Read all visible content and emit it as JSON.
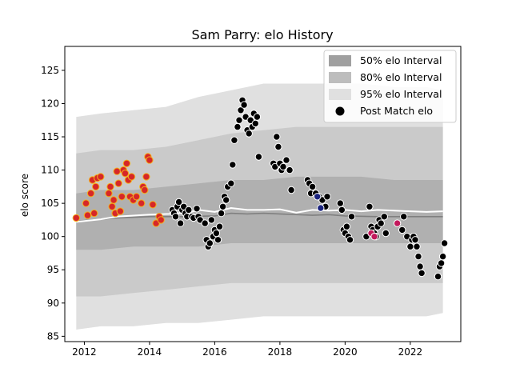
{
  "chart_data": {
    "type": "scatter",
    "title": "Sam Parry: elo History",
    "xlabel": "",
    "ylabel": "elo score",
    "xlim": [
      2011.4,
      2023.55
    ],
    "ylim": [
      84.2,
      128.6
    ],
    "xticks": [
      2012,
      2014,
      2016,
      2018,
      2020,
      2022
    ],
    "xtick_labels": [
      "2012",
      "2014",
      "2016",
      "2018",
      "2020",
      "2022"
    ],
    "yticks": [
      85,
      90,
      95,
      100,
      105,
      110,
      115,
      120,
      125
    ],
    "ytick_labels": [
      "85",
      "90",
      "95",
      "100",
      "105",
      "110",
      "115",
      "120",
      "125"
    ],
    "grid": false,
    "legend_position": "top-right",
    "legend": [
      {
        "label": "50% elo Interval",
        "kind": "patch",
        "color": "#a0a0a0"
      },
      {
        "label": "80% elo Interval",
        "kind": "patch",
        "color": "#bdbdbd"
      },
      {
        "label": "95% elo Interval",
        "kind": "patch",
        "color": "#e0e0e0"
      },
      {
        "label": "Post Match elo",
        "kind": "marker",
        "color": "#000000"
      }
    ],
    "bands": {
      "x": [
        2011.75,
        2012.5,
        2013.5,
        2014.5,
        2015.5,
        2016.5,
        2017.5,
        2018.5,
        2019.5,
        2020.5,
        2021.5,
        2022.5,
        2023.0
      ],
      "p95_low": [
        86.0,
        86.5,
        86.5,
        87.0,
        87.0,
        87.5,
        88.0,
        88.0,
        88.0,
        88.0,
        88.0,
        88.0,
        88.5
      ],
      "p95_high": [
        118.0,
        118.5,
        119.0,
        119.5,
        121.0,
        122.0,
        123.0,
        123.0,
        123.0,
        123.0,
        122.5,
        122.5,
        122.0
      ],
      "p80_low": [
        91.0,
        91.0,
        91.5,
        92.0,
        92.5,
        93.0,
        93.0,
        93.0,
        93.0,
        93.0,
        93.0,
        93.0,
        93.0
      ],
      "p80_high": [
        112.5,
        113.0,
        113.0,
        113.5,
        114.5,
        115.5,
        116.0,
        116.5,
        116.5,
        116.5,
        116.5,
        116.5,
        116.5
      ],
      "p50_low": [
        98.0,
        98.0,
        98.5,
        98.5,
        98.5,
        99.0,
        99.0,
        99.0,
        99.0,
        99.0,
        99.0,
        99.0,
        99.0
      ],
      "p50_high": [
        106.5,
        107.0,
        107.0,
        107.5,
        108.0,
        108.5,
        108.5,
        109.0,
        109.0,
        109.0,
        108.5,
        108.5,
        108.5
      ]
    },
    "series": [
      {
        "kind": "line",
        "color": "#808080",
        "x": [
          2011.75,
          2012.5,
          2013.0,
          2014.0,
          2015.0,
          2016.0,
          2016.5,
          2017.0,
          2017.5,
          2018.0,
          2019.0,
          2019.5,
          2020.0,
          2021.0,
          2022.0,
          2023.0
        ],
        "y": [
          102.3,
          102.6,
          102.8,
          103.0,
          103.0,
          103.1,
          103.5,
          103.4,
          103.5,
          103.4,
          103.2,
          103.3,
          103.1,
          103.0,
          103.0,
          103.0
        ]
      },
      {
        "kind": "line",
        "color": "#ffffff",
        "x": [
          2011.75,
          2012.5,
          2013.0,
          2014.0,
          2014.6,
          2015.2,
          2015.5,
          2016.0,
          2016.5,
          2017.0,
          2017.5,
          2018.0,
          2018.5,
          2019.0,
          2019.5,
          2020.0,
          2020.5,
          2021.0,
          2021.5,
          2022.0,
          2022.5,
          2023.0
        ],
        "y": [
          102.2,
          102.6,
          103.0,
          103.3,
          103.4,
          103.6,
          104.0,
          103.7,
          104.3,
          104.0,
          104.0,
          104.1,
          103.6,
          104.0,
          103.9,
          104.0,
          103.8,
          104.0,
          103.9,
          103.8,
          103.7,
          103.8
        ]
      },
      {
        "name": "",
        "kind": "points",
        "fill": "#d62728",
        "stroke": "#f5b01a",
        "x": [
          2011.75,
          2012.05,
          2012.1,
          2012.2,
          2012.25,
          2012.3,
          2012.35,
          2012.4,
          2012.5,
          2012.75,
          2012.8,
          2012.85,
          2012.9,
          2012.95,
          2013.0,
          2013.05,
          2013.1,
          2013.15,
          2013.2,
          2013.25,
          2013.3,
          2013.35,
          2013.4,
          2013.45,
          2013.5,
          2013.6,
          2013.75,
          2013.8,
          2013.85,
          2013.9,
          2013.95,
          2014.0,
          2014.1,
          2014.2,
          2014.3,
          2014.35
        ],
        "y": [
          102.8,
          105.0,
          103.2,
          106.5,
          108.5,
          103.5,
          107.5,
          108.8,
          109.0,
          106.5,
          107.5,
          104.5,
          105.5,
          103.5,
          109.8,
          108.0,
          103.8,
          106.0,
          110.0,
          109.5,
          111.0,
          108.5,
          106.0,
          109.0,
          105.5,
          106.0,
          105.0,
          107.5,
          107.0,
          109.0,
          112.0,
          111.5,
          104.8,
          102.0,
          103.0,
          102.5
        ]
      },
      {
        "name": "",
        "kind": "points",
        "fill": "#000000",
        "stroke": "#ffffff",
        "x": [
          2014.7,
          2014.75,
          2014.8,
          2014.85,
          2014.9,
          2014.95,
          2015.0,
          2015.05,
          2015.1,
          2015.15,
          2015.2,
          2015.3,
          2015.35,
          2015.45,
          2015.5,
          2015.55,
          2015.7,
          2015.75,
          2015.8,
          2015.85,
          2015.9,
          2015.95,
          2016.0,
          2016.05,
          2016.1,
          2016.15,
          2016.2,
          2016.25,
          2016.3,
          2016.35,
          2016.4,
          2016.5,
          2016.55,
          2016.6,
          2016.7,
          2016.75,
          2016.8,
          2016.85,
          2016.9,
          2016.95,
          2017.0,
          2017.05,
          2017.1,
          2017.15,
          2017.2,
          2017.25,
          2017.3,
          2017.35,
          2017.8,
          2017.85,
          2017.9,
          2017.95,
          2018.0,
          2018.05,
          2018.1,
          2018.2,
          2018.3,
          2018.35,
          2018.85,
          2018.9,
          2018.95,
          2019.0,
          2019.1,
          2019.2,
          2019.3,
          2019.4,
          2019.45,
          2019.85,
          2019.9,
          2019.95,
          2020.0,
          2020.05,
          2020.1,
          2020.15,
          2020.2,
          2020.65,
          2020.75,
          2020.8,
          2020.85,
          2020.9,
          2020.95,
          2021.0,
          2021.05,
          2021.1,
          2021.2,
          2021.25,
          2021.75,
          2021.8,
          2021.9,
          2022.0,
          2022.05,
          2022.1,
          2022.15,
          2022.2,
          2022.25,
          2022.3,
          2022.35,
          2022.85,
          2022.9,
          2022.95,
          2023.0,
          2023.05
        ],
        "y": [
          104.0,
          103.5,
          103.0,
          104.5,
          105.2,
          102.0,
          104.0,
          104.5,
          103.5,
          103.0,
          104.0,
          103.0,
          102.8,
          104.2,
          103.0,
          102.5,
          102.0,
          99.5,
          98.5,
          99.0,
          102.5,
          100.0,
          101.0,
          100.5,
          99.5,
          101.5,
          103.5,
          104.5,
          106.0,
          105.5,
          107.5,
          108.0,
          110.8,
          114.5,
          116.5,
          117.5,
          119.0,
          120.5,
          119.8,
          118.0,
          116.0,
          115.5,
          117.5,
          116.5,
          118.5,
          117.0,
          118.0,
          112.0,
          111.0,
          110.5,
          115.0,
          113.5,
          111.0,
          110.0,
          110.5,
          111.5,
          110.0,
          107.0,
          108.5,
          108.0,
          106.5,
          107.5,
          106.5,
          106.0,
          105.5,
          104.5,
          106.0,
          105.0,
          104.0,
          101.0,
          100.5,
          101.5,
          100.0,
          99.5,
          103.0,
          100.0,
          104.5,
          101.5,
          101.0,
          100.5,
          100.0,
          101.5,
          102.5,
          102.0,
          103.0,
          100.5,
          101.0,
          103.0,
          100.0,
          98.5,
          99.5,
          100.0,
          99.5,
          98.5,
          97.0,
          95.5,
          94.5,
          94.0,
          95.5,
          96.0,
          97.0,
          99.0
        ],
        "y_shift": []
      },
      {
        "name": "",
        "kind": "points",
        "fill": "#c2185b",
        "stroke": "#ffffff",
        "x": [
          2020.8,
          2020.9,
          2021.6
        ],
        "y": [
          100.5,
          100.0,
          102.0
        ]
      },
      {
        "name": "",
        "kind": "points",
        "fill": "#1a237e",
        "stroke": "#ffffff",
        "x": [
          2019.15,
          2019.25
        ],
        "y": [
          106.0,
          104.3
        ]
      }
    ]
  }
}
